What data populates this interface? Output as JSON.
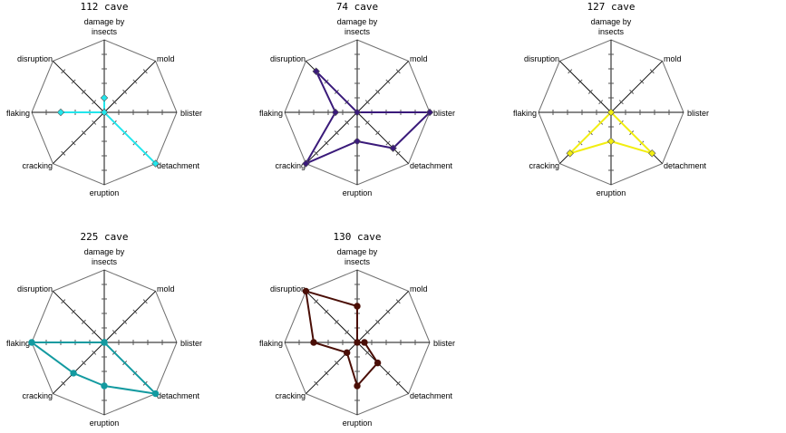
{
  "chart_data": [
    {
      "type": "radar",
      "title": "112 cave",
      "axes": [
        "damage by insects",
        "mold",
        "blister",
        "detachment",
        "eruption",
        "cracking",
        "flaking",
        "disruption"
      ],
      "rmax": 5,
      "grid": true,
      "color": "#22e6ec",
      "marker": "diamond",
      "values": [
        1,
        0,
        0,
        5,
        0,
        0,
        3,
        0
      ]
    },
    {
      "type": "radar",
      "title": "74 cave",
      "axes": [
        "damage by insects",
        "mold",
        "blister",
        "detachment",
        "eruption",
        "cracking",
        "flaking",
        "disruption"
      ],
      "rmax": 5,
      "grid": true,
      "color": "#3a1a7a",
      "marker": "diamond",
      "values": [
        0,
        0,
        5,
        3.5,
        2,
        5,
        1.5,
        4
      ]
    },
    {
      "type": "radar",
      "title": "127 cave",
      "axes": [
        "damage by insects",
        "mold",
        "blister",
        "detachment",
        "eruption",
        "cracking",
        "flaking",
        "disruption"
      ],
      "rmax": 5,
      "grid": true,
      "color": "#f2ee10",
      "marker": "diamond",
      "values": [
        0,
        0,
        0,
        4,
        2,
        4,
        0,
        0
      ]
    },
    {
      "type": "radar",
      "title": "225 cave",
      "axes": [
        "damage by insects",
        "mold",
        "blister",
        "detachment",
        "eruption",
        "cracking",
        "flaking",
        "disruption"
      ],
      "rmax": 5,
      "grid": true,
      "color": "#139aa0",
      "marker": "circle",
      "values": [
        0,
        0,
        0,
        5,
        3,
        3,
        5,
        0
      ]
    },
    {
      "type": "radar",
      "title": "130 cave",
      "axes": [
        "damage by insects",
        "mold",
        "blister",
        "detachment",
        "eruption",
        "cracking",
        "flaking",
        "disruption"
      ],
      "rmax": 5,
      "grid": true,
      "color": "#4a0e06",
      "marker": "circle",
      "values": [
        2.5,
        0,
        0.5,
        2,
        3,
        1,
        3,
        5
      ]
    }
  ]
}
